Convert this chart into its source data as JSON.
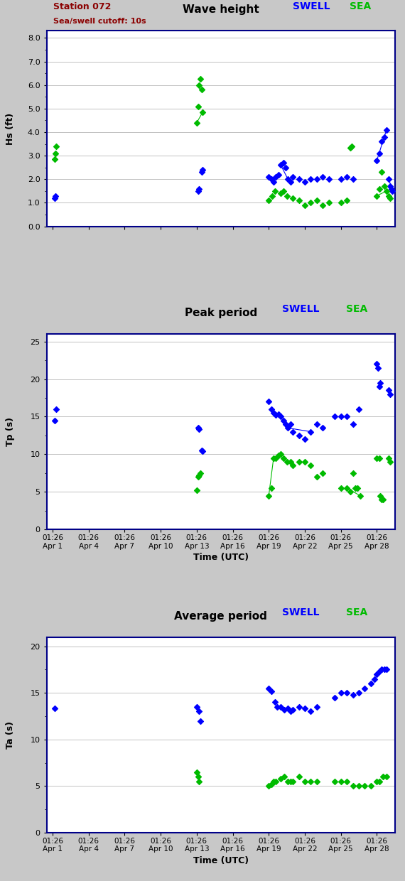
{
  "title1": "Wave height",
  "title2": "Peak period",
  "title3": "Average period",
  "station_label": "Station 072",
  "cutoff_label": "Sea/swell cutoff: 10s",
  "swell_label": "SWELL",
  "sea_label": "SEA",
  "ylabel1": "Hs (ft)",
  "ylabel2": "Tp (s)",
  "ylabel3": "Ta (s)",
  "xlabel": "Time (UTC)",
  "swell_color": "#0000ff",
  "sea_color": "#00bb00",
  "bg_color": "#c8c8c8",
  "plot_bg_color": "#ffffff",
  "border_color": "#000088",
  "yticks1": [
    0.0,
    1.0,
    2.0,
    3.0,
    4.0,
    5.0,
    6.0,
    7.0,
    8.0
  ],
  "yticks2": [
    0,
    5,
    10,
    15,
    20,
    25
  ],
  "yticks3": [
    0,
    5,
    10,
    15,
    20
  ],
  "ylim1": [
    0.0,
    8.3
  ],
  "ylim2": [
    0,
    26
  ],
  "ylim3": [
    0,
    21
  ],
  "xtick_positions": [
    0,
    3,
    6,
    9,
    12,
    15,
    18,
    21,
    24,
    27
  ],
  "xtick_labels": [
    "01:26\nApr 1",
    "01:26\nApr 4",
    "01:26\nApr 7",
    "01:26\nApr 10",
    "01:26\nApr 13",
    "01:26\nApr 16",
    "01:26\nApr 19",
    "01:26\nApr 22",
    "01:26\nApr 25",
    "01:26\nApr 28"
  ],
  "xlim": [
    -0.5,
    28.5
  ],
  "hs_swell": [
    [
      0.2,
      1.2
    ],
    [
      0.25,
      1.3
    ],
    [
      12.1,
      1.5
    ],
    [
      12.2,
      1.6
    ],
    [
      12.4,
      2.3
    ],
    [
      12.5,
      2.4
    ],
    [
      18.0,
      2.1
    ],
    [
      18.2,
      2.0
    ],
    [
      18.4,
      1.9
    ],
    [
      18.6,
      2.1
    ],
    [
      18.8,
      2.2
    ],
    [
      19.0,
      2.6
    ],
    [
      19.2,
      2.7
    ],
    [
      19.4,
      2.5
    ],
    [
      19.6,
      2.0
    ],
    [
      19.8,
      1.9
    ],
    [
      20.0,
      2.1
    ],
    [
      20.5,
      2.0
    ],
    [
      21.0,
      1.9
    ],
    [
      21.5,
      2.0
    ],
    [
      22.0,
      2.0
    ],
    [
      22.5,
      2.1
    ],
    [
      23.0,
      2.0
    ],
    [
      24.0,
      2.0
    ],
    [
      24.5,
      2.1
    ],
    [
      25.0,
      2.0
    ],
    [
      27.0,
      2.8
    ],
    [
      27.2,
      3.1
    ],
    [
      27.4,
      3.6
    ],
    [
      27.6,
      3.8
    ],
    [
      27.8,
      4.1
    ],
    [
      28.0,
      2.0
    ],
    [
      28.1,
      1.7
    ],
    [
      28.2,
      1.6
    ],
    [
      28.3,
      1.5
    ]
  ],
  "hs_sea": [
    [
      0.2,
      2.85
    ],
    [
      0.25,
      3.1
    ],
    [
      0.3,
      3.4
    ],
    [
      12.0,
      4.4
    ],
    [
      12.1,
      5.1
    ],
    [
      12.2,
      6.0
    ],
    [
      12.3,
      6.25
    ],
    [
      12.4,
      5.8
    ],
    [
      12.5,
      4.85
    ],
    [
      18.0,
      1.1
    ],
    [
      18.3,
      1.3
    ],
    [
      18.5,
      1.5
    ],
    [
      19.0,
      1.4
    ],
    [
      19.2,
      1.5
    ],
    [
      19.5,
      1.3
    ],
    [
      20.0,
      1.2
    ],
    [
      20.5,
      1.1
    ],
    [
      21.0,
      0.9
    ],
    [
      21.5,
      1.0
    ],
    [
      22.0,
      1.1
    ],
    [
      22.5,
      0.9
    ],
    [
      23.0,
      1.0
    ],
    [
      24.0,
      1.0
    ],
    [
      24.5,
      1.1
    ],
    [
      24.8,
      3.35
    ],
    [
      24.9,
      3.4
    ],
    [
      27.0,
      1.3
    ],
    [
      27.2,
      1.6
    ],
    [
      27.4,
      2.3
    ],
    [
      27.6,
      1.7
    ],
    [
      27.8,
      1.5
    ],
    [
      28.0,
      1.3
    ],
    [
      28.1,
      1.2
    ]
  ],
  "tp_swell": [
    [
      0.2,
      14.5
    ],
    [
      0.3,
      16.0
    ],
    [
      12.1,
      13.5
    ],
    [
      12.2,
      13.3
    ],
    [
      12.4,
      10.5
    ],
    [
      12.5,
      10.4
    ],
    [
      18.0,
      17.0
    ],
    [
      18.2,
      16.0
    ],
    [
      18.4,
      15.5
    ],
    [
      18.6,
      15.2
    ],
    [
      18.8,
      15.3
    ],
    [
      19.0,
      15.0
    ],
    [
      19.2,
      14.5
    ],
    [
      19.4,
      14.0
    ],
    [
      19.6,
      13.5
    ],
    [
      19.8,
      14.0
    ],
    [
      20.0,
      13.0
    ],
    [
      20.5,
      12.5
    ],
    [
      21.0,
      12.0
    ],
    [
      21.5,
      13.0
    ],
    [
      22.0,
      14.0
    ],
    [
      22.5,
      13.5
    ],
    [
      23.5,
      15.0
    ],
    [
      24.0,
      15.0
    ],
    [
      24.5,
      15.0
    ],
    [
      25.0,
      14.0
    ],
    [
      25.5,
      16.0
    ],
    [
      27.0,
      22.0
    ],
    [
      27.1,
      21.5
    ],
    [
      27.2,
      19.0
    ],
    [
      27.3,
      19.5
    ],
    [
      28.0,
      18.5
    ],
    [
      28.1,
      18.0
    ]
  ],
  "tp_sea": [
    [
      12.0,
      5.2
    ],
    [
      12.1,
      7.0
    ],
    [
      12.2,
      7.2
    ],
    [
      12.3,
      7.5
    ],
    [
      18.0,
      4.5
    ],
    [
      18.2,
      5.5
    ],
    [
      18.4,
      9.5
    ],
    [
      18.6,
      9.5
    ],
    [
      18.8,
      9.8
    ],
    [
      19.0,
      10.0
    ],
    [
      19.2,
      9.5
    ],
    [
      19.5,
      9.0
    ],
    [
      19.8,
      9.0
    ],
    [
      20.0,
      8.5
    ],
    [
      20.5,
      9.0
    ],
    [
      21.0,
      9.0
    ],
    [
      21.5,
      8.5
    ],
    [
      22.0,
      7.0
    ],
    [
      22.5,
      7.5
    ],
    [
      24.0,
      5.5
    ],
    [
      24.5,
      5.5
    ],
    [
      24.8,
      5.0
    ],
    [
      25.0,
      7.5
    ],
    [
      25.2,
      5.5
    ],
    [
      25.4,
      5.5
    ],
    [
      25.6,
      4.5
    ],
    [
      27.0,
      9.5
    ],
    [
      27.2,
      9.5
    ],
    [
      27.3,
      4.5
    ],
    [
      27.4,
      4.0
    ],
    [
      27.5,
      4.0
    ],
    [
      28.0,
      9.5
    ],
    [
      28.1,
      9.0
    ]
  ],
  "ta_swell": [
    [
      0.2,
      13.3
    ],
    [
      12.0,
      13.5
    ],
    [
      12.2,
      13.0
    ],
    [
      12.3,
      12.0
    ],
    [
      18.0,
      15.5
    ],
    [
      18.2,
      15.2
    ],
    [
      18.5,
      14.0
    ],
    [
      18.7,
      13.5
    ],
    [
      19.0,
      13.5
    ],
    [
      19.3,
      13.2
    ],
    [
      19.6,
      13.3
    ],
    [
      19.8,
      13.0
    ],
    [
      20.0,
      13.2
    ],
    [
      20.5,
      13.5
    ],
    [
      21.0,
      13.3
    ],
    [
      21.5,
      13.0
    ],
    [
      22.0,
      13.5
    ],
    [
      23.5,
      14.5
    ],
    [
      24.0,
      15.0
    ],
    [
      24.5,
      15.0
    ],
    [
      25.0,
      14.8
    ],
    [
      25.5,
      15.0
    ],
    [
      26.0,
      15.5
    ],
    [
      26.5,
      16.0
    ],
    [
      26.8,
      16.5
    ],
    [
      27.0,
      17.0
    ],
    [
      27.2,
      17.3
    ],
    [
      27.4,
      17.5
    ],
    [
      27.6,
      17.5
    ],
    [
      27.8,
      17.5
    ]
  ],
  "ta_sea": [
    [
      12.0,
      6.5
    ],
    [
      12.1,
      6.0
    ],
    [
      12.2,
      5.5
    ],
    [
      18.0,
      5.0
    ],
    [
      18.2,
      5.2
    ],
    [
      18.4,
      5.5
    ],
    [
      18.6,
      5.5
    ],
    [
      19.0,
      5.8
    ],
    [
      19.3,
      6.0
    ],
    [
      19.6,
      5.5
    ],
    [
      19.8,
      5.5
    ],
    [
      20.0,
      5.5
    ],
    [
      20.5,
      6.0
    ],
    [
      21.0,
      5.5
    ],
    [
      21.5,
      5.5
    ],
    [
      22.0,
      5.5
    ],
    [
      23.5,
      5.5
    ],
    [
      24.0,
      5.5
    ],
    [
      24.5,
      5.5
    ],
    [
      25.0,
      5.0
    ],
    [
      25.5,
      5.0
    ],
    [
      26.0,
      5.0
    ],
    [
      26.5,
      5.0
    ],
    [
      27.0,
      5.5
    ],
    [
      27.2,
      5.5
    ],
    [
      27.5,
      6.0
    ],
    [
      27.8,
      6.0
    ]
  ],
  "hs_swell_lines": [
    [
      [
        19.0,
        19.6
      ],
      [
        2.6,
        2.0
      ]
    ],
    [
      [
        27.0,
        27.8
      ],
      [
        2.8,
        4.1
      ]
    ],
    [
      [
        28.0,
        28.3
      ],
      [
        2.0,
        1.5
      ]
    ]
  ],
  "hs_sea_lines": [
    [
      [
        12.0,
        12.5
      ],
      [
        4.4,
        4.85
      ]
    ],
    [
      [
        24.8,
        24.9
      ],
      [
        3.35,
        3.4
      ]
    ],
    [
      [
        27.0,
        27.8
      ],
      [
        1.3,
        1.5
      ]
    ]
  ],
  "tp_sea_lines": [
    [
      [
        18.0,
        18.4
      ],
      [
        4.5,
        9.5
      ]
    ],
    [
      [
        24.5,
        25.6
      ],
      [
        5.5,
        4.5
      ]
    ],
    [
      [
        27.3,
        27.5
      ],
      [
        4.5,
        4.0
      ]
    ]
  ],
  "tp_swell_lines": [
    [
      [
        19.6,
        21.5
      ],
      [
        13.5,
        13.0
      ]
    ],
    [
      [
        27.2,
        27.3
      ],
      [
        19.0,
        19.5
      ]
    ]
  ]
}
